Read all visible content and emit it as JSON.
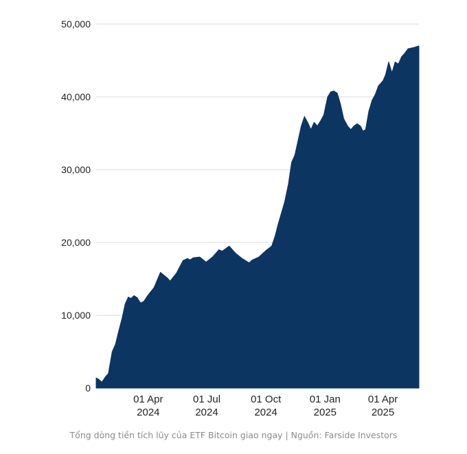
{
  "chart_data": {
    "type": "area",
    "title": "",
    "xlabel": "",
    "ylabel": "",
    "x_range": [
      "2024-01-11",
      "2025-05-27"
    ],
    "ylim": [
      0,
      50000
    ],
    "y_ticks": [
      0,
      10000,
      20000,
      30000,
      40000,
      50000
    ],
    "y_tick_labels": [
      "0",
      "10,000",
      "20,000",
      "30,000",
      "40,000",
      "50,000"
    ],
    "x_ticks": [
      {
        "date": "2024-04-01",
        "line1": "01 Apr",
        "line2": "2024"
      },
      {
        "date": "2024-07-01",
        "line1": "01 Jul",
        "line2": "2024"
      },
      {
        "date": "2024-10-01",
        "line1": "01 Oct",
        "line2": "2024"
      },
      {
        "date": "2025-01-01",
        "line1": "01 Jan",
        "line2": "2025"
      },
      {
        "date": "2025-04-01",
        "line1": "01 Apr",
        "line2": "2025"
      }
    ],
    "grid": true,
    "fill_color": "#0c3561",
    "series": [
      {
        "name": "",
        "x": [
          "2024-01-11",
          "2024-01-15",
          "2024-01-20",
          "2024-01-25",
          "2024-01-30",
          "2024-02-05",
          "2024-02-10",
          "2024-02-15",
          "2024-02-20",
          "2024-02-25",
          "2024-03-01",
          "2024-03-05",
          "2024-03-10",
          "2024-03-15",
          "2024-03-20",
          "2024-03-25",
          "2024-04-01",
          "2024-04-10",
          "2024-04-20",
          "2024-05-01",
          "2024-05-05",
          "2024-05-15",
          "2024-05-25",
          "2024-06-01",
          "2024-06-05",
          "2024-06-10",
          "2024-06-20",
          "2024-06-30",
          "2024-07-10",
          "2024-07-20",
          "2024-07-25",
          "2024-08-05",
          "2024-08-15",
          "2024-08-25",
          "2024-09-05",
          "2024-09-10",
          "2024-09-20",
          "2024-09-30",
          "2024-10-10",
          "2024-10-15",
          "2024-10-20",
          "2024-10-25",
          "2024-10-30",
          "2024-11-05",
          "2024-11-10",
          "2024-11-15",
          "2024-11-20",
          "2024-11-25",
          "2024-11-30",
          "2024-12-05",
          "2024-12-10",
          "2024-12-15",
          "2024-12-20",
          "2024-12-25",
          "2024-12-30",
          "2025-01-05",
          "2025-01-10",
          "2025-01-15",
          "2025-01-20",
          "2025-01-25",
          "2025-01-30",
          "2025-02-05",
          "2025-02-10",
          "2025-02-15",
          "2025-02-20",
          "2025-02-25",
          "2025-03-01",
          "2025-03-05",
          "2025-03-10",
          "2025-03-15",
          "2025-03-20",
          "2025-03-25",
          "2025-04-01",
          "2025-04-05",
          "2025-04-10",
          "2025-04-15",
          "2025-04-20",
          "2025-04-25",
          "2025-04-30",
          "2025-05-05",
          "2025-05-10",
          "2025-05-15",
          "2025-05-20",
          "2025-05-27"
        ],
        "y": [
          1400,
          1200,
          800,
          1500,
          2000,
          5000,
          6000,
          7800,
          9500,
          11500,
          12500,
          12300,
          12700,
          12400,
          11700,
          11900,
          12800,
          13800,
          15900,
          15100,
          14700,
          15800,
          17500,
          17800,
          17600,
          17900,
          18000,
          17300,
          18000,
          19000,
          18800,
          19500,
          18500,
          17800,
          17200,
          17600,
          18000,
          18800,
          19500,
          20800,
          22500,
          24000,
          25500,
          28000,
          31000,
          32000,
          34000,
          36000,
          37300,
          36500,
          35500,
          36500,
          36000,
          36700,
          37500,
          40000,
          40700,
          40800,
          40500,
          39000,
          37000,
          36000,
          35500,
          36000,
          36300,
          36000,
          35300,
          35500,
          38000,
          39500,
          40300,
          41500,
          42200,
          43000,
          44800,
          43300,
          44800,
          44500,
          45500,
          46000,
          46600,
          46700,
          46800,
          47000
        ]
      }
    ]
  },
  "caption": "Tổng dòng tiền tích lũy của ETF Bitcoin giao ngay | Nguồn: Farside Investors"
}
